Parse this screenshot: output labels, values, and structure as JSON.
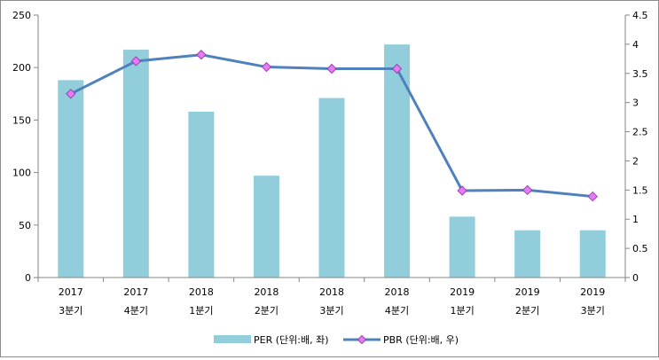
{
  "chart_data": {
    "type": "bar+line",
    "title": "",
    "categories": [
      {
        "year": "2017",
        "quarter": "3분기"
      },
      {
        "year": "2017",
        "quarter": "4분기"
      },
      {
        "year": "2018",
        "quarter": "1분기"
      },
      {
        "year": "2018",
        "quarter": "2분기"
      },
      {
        "year": "2018",
        "quarter": "3분기"
      },
      {
        "year": "2018",
        "quarter": "4분기"
      },
      {
        "year": "2019",
        "quarter": "1분기"
      },
      {
        "year": "2019",
        "quarter": "2분기"
      },
      {
        "year": "2019",
        "quarter": "3분기"
      }
    ],
    "series": [
      {
        "name": "PER (단위:배, 좌)",
        "type": "bar",
        "axis": "left",
        "color": "#92cddc",
        "values": [
          188,
          217,
          158,
          97,
          171,
          222,
          58,
          45,
          45
        ]
      },
      {
        "name": "PBR (단위:배, 우)",
        "type": "line",
        "axis": "right",
        "color": "#4f81bd",
        "marker_color": "#e67cf5",
        "values": [
          3.15,
          3.71,
          3.82,
          3.61,
          3.58,
          3.58,
          1.49,
          1.5,
          1.39
        ]
      }
    ],
    "y_left": {
      "min": 0,
      "max": 250,
      "step": 50,
      "ticks": [
        "0",
        "50",
        "100",
        "150",
        "200",
        "250"
      ]
    },
    "y_right": {
      "min": 0,
      "max": 4.5,
      "step": 0.5,
      "ticks": [
        "0",
        "0.5",
        "1",
        "1.5",
        "2",
        "2.5",
        "3",
        "3.5",
        "4",
        "4.5"
      ]
    },
    "grid": false,
    "legend": "bottom"
  }
}
